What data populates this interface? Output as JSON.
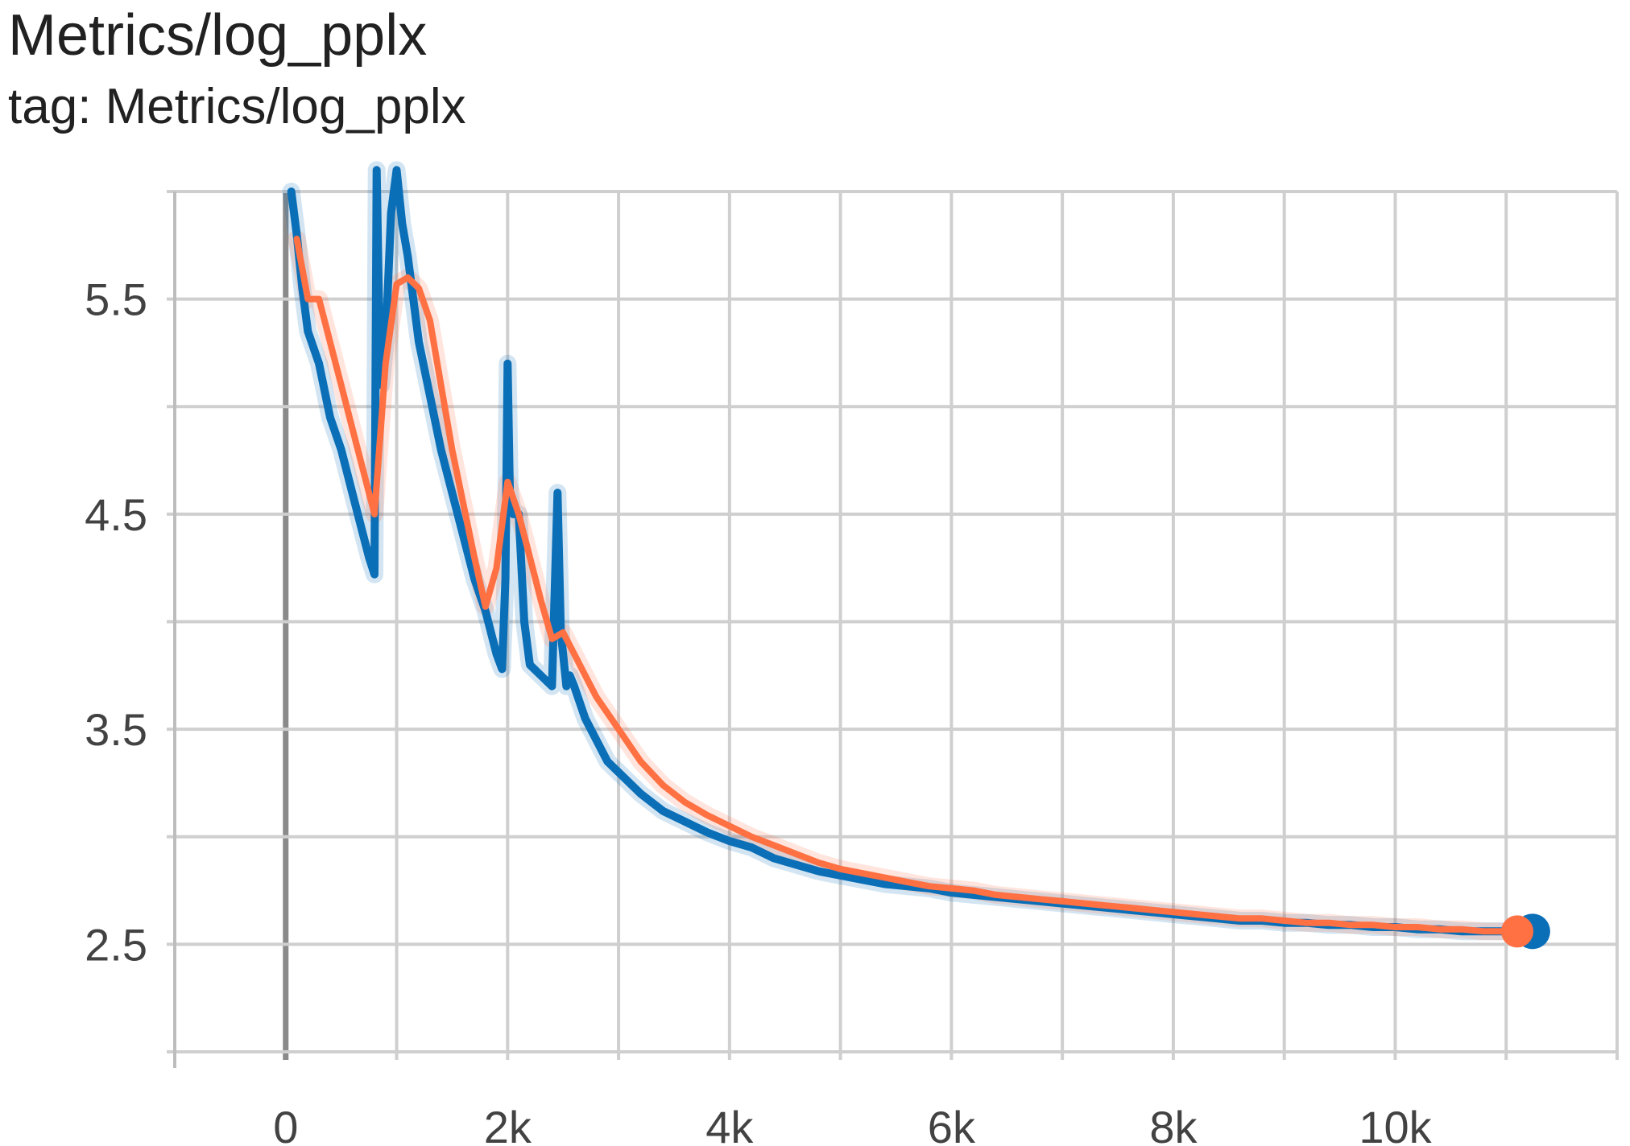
{
  "header": {
    "title": "Metrics/log_pplx",
    "subtitle": "tag: Metrics/log_pplx"
  },
  "chart_data": {
    "type": "line",
    "title": "Metrics/log_pplx",
    "subtitle": "tag: Metrics/log_pplx",
    "xlabel": "",
    "ylabel": "",
    "xlim": [
      -1000,
      12000
    ],
    "ylim": [
      2.0,
      6.0
    ],
    "x_ticks": [
      {
        "value": 0,
        "label": "0"
      },
      {
        "value": 2000,
        "label": "2k"
      },
      {
        "value": 4000,
        "label": "4k"
      },
      {
        "value": 6000,
        "label": "6k"
      },
      {
        "value": 8000,
        "label": "8k"
      },
      {
        "value": 10000,
        "label": "10k"
      }
    ],
    "y_ticks": [
      {
        "value": 2.5,
        "label": "2.5"
      },
      {
        "value": 3.5,
        "label": "3.5"
      },
      {
        "value": 4.5,
        "label": "4.5"
      },
      {
        "value": 5.5,
        "label": "5.5"
      }
    ],
    "grid": true,
    "legend": "none",
    "series": [
      {
        "color": "#0b6fb8",
        "x": [
          50,
          100,
          150,
          200,
          300,
          400,
          500,
          600,
          700,
          750,
          800,
          820,
          840,
          860,
          900,
          950,
          1000,
          1050,
          1100,
          1150,
          1200,
          1300,
          1400,
          1500,
          1600,
          1700,
          1800,
          1900,
          1950,
          1980,
          2000,
          2020,
          2050,
          2100,
          2150,
          2200,
          2300,
          2400,
          2450,
          2480,
          2500,
          2530,
          2560,
          2600,
          2700,
          2800,
          2900,
          3000,
          3200,
          3400,
          3600,
          3800,
          4000,
          4200,
          4400,
          4600,
          4800,
          5000,
          5200,
          5400,
          5600,
          5800,
          6000,
          6200,
          6400,
          6600,
          6800,
          7000,
          7200,
          7400,
          7600,
          7800,
          8000,
          8200,
          8400,
          8600,
          8800,
          9000,
          9200,
          9400,
          9600,
          9800,
          10000,
          10200,
          10400,
          10600,
          10800,
          11000,
          11100,
          11150
        ],
        "values": [
          6.0,
          5.8,
          5.55,
          5.35,
          5.2,
          4.95,
          4.8,
          4.6,
          4.4,
          4.3,
          4.22,
          6.1,
          5.5,
          5.1,
          5.3,
          5.9,
          6.1,
          5.85,
          5.7,
          5.5,
          5.3,
          5.05,
          4.8,
          4.6,
          4.4,
          4.2,
          4.05,
          3.85,
          3.78,
          4.2,
          5.2,
          4.6,
          4.5,
          4.5,
          4.0,
          3.8,
          3.75,
          3.7,
          4.6,
          3.95,
          3.85,
          3.7,
          3.75,
          3.7,
          3.55,
          3.45,
          3.35,
          3.3,
          3.2,
          3.12,
          3.07,
          3.02,
          2.98,
          2.95,
          2.9,
          2.87,
          2.84,
          2.82,
          2.8,
          2.78,
          2.77,
          2.76,
          2.74,
          2.73,
          2.72,
          2.71,
          2.7,
          2.69,
          2.68,
          2.67,
          2.66,
          2.65,
          2.64,
          2.63,
          2.62,
          2.61,
          2.61,
          2.6,
          2.6,
          2.59,
          2.59,
          2.58,
          2.58,
          2.57,
          2.57,
          2.56,
          2.56,
          2.56,
          2.56,
          2.56
        ]
      },
      {
        "color": "#ff7043",
        "x": [
          100,
          200,
          300,
          400,
          500,
          600,
          700,
          800,
          900,
          1000,
          1100,
          1200,
          1300,
          1400,
          1500,
          1600,
          1700,
          1800,
          1900,
          2000,
          2100,
          2200,
          2300,
          2400,
          2500,
          2600,
          2700,
          2800,
          3000,
          3200,
          3400,
          3600,
          3800,
          4000,
          4200,
          4400,
          4600,
          4800,
          5000,
          5200,
          5400,
          5600,
          5800,
          6000,
          6200,
          6400,
          6600,
          6800,
          7000,
          7200,
          7400,
          7600,
          7800,
          8000,
          8200,
          8400,
          8600,
          8800,
          9000,
          9200,
          9400,
          9600,
          9800,
          10000,
          10200,
          10400,
          10600,
          10800,
          11000,
          11100
        ],
        "values": [
          5.78,
          5.5,
          5.5,
          5.3,
          5.1,
          4.9,
          4.7,
          4.5,
          5.2,
          5.57,
          5.6,
          5.55,
          5.4,
          5.1,
          4.8,
          4.55,
          4.3,
          4.07,
          4.25,
          4.65,
          4.5,
          4.3,
          4.1,
          3.92,
          3.95,
          3.85,
          3.75,
          3.65,
          3.5,
          3.35,
          3.24,
          3.16,
          3.1,
          3.05,
          3.0,
          2.96,
          2.92,
          2.88,
          2.85,
          2.83,
          2.81,
          2.79,
          2.77,
          2.76,
          2.75,
          2.73,
          2.72,
          2.71,
          2.7,
          2.69,
          2.68,
          2.67,
          2.66,
          2.65,
          2.64,
          2.63,
          2.62,
          2.62,
          2.61,
          2.6,
          2.6,
          2.59,
          2.59,
          2.58,
          2.58,
          2.57,
          2.57,
          2.56,
          2.56,
          2.56
        ]
      }
    ]
  }
}
